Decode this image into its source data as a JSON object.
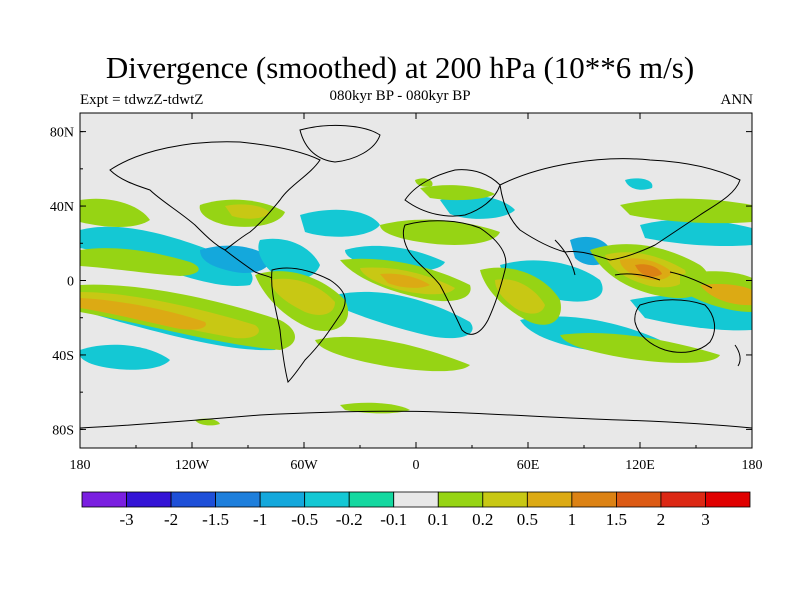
{
  "header": {
    "title": "Divergence (smoothed) at 200 hPa (10**6 m/s)",
    "subtitle": "080kyr BP - 080kyr BP",
    "experiment": "Expt = tdwzZ-tdwtZ",
    "season": "ANN"
  },
  "map": {
    "lat_ticks": [
      "80N",
      "40N",
      "0",
      "40S",
      "80S"
    ],
    "lon_ticks": [
      "180",
      "120W",
      "60W",
      "0",
      "60E",
      "120E",
      "180"
    ],
    "ocean_land_color": "#e8e8e8",
    "coastline_color": "#000000"
  },
  "colorbar": {
    "colors": [
      "#7a1fe0",
      "#3414d6",
      "#1e4fd8",
      "#1e7fdc",
      "#14a8dc",
      "#14c8d4",
      "#14d8a0",
      "#e8e8e8",
      "#96d414",
      "#c8c814",
      "#dcaa14",
      "#dc8214",
      "#dc5a14",
      "#dc2814",
      "#e00000"
    ],
    "labels": [
      "-3",
      "-2",
      "-1.5",
      "-1",
      "-0.5",
      "-0.2",
      "-0.1",
      "0.1",
      "0.2",
      "0.5",
      "1",
      "1.5",
      "2",
      "3"
    ]
  }
}
